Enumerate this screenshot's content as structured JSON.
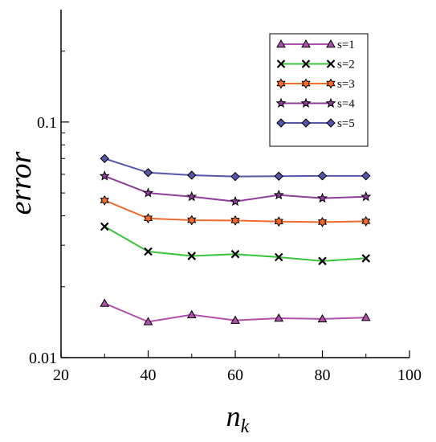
{
  "chart_data": {
    "type": "line",
    "xlabel": "n",
    "xlabel_sub": "k",
    "ylabel": "error",
    "xlim": [
      20,
      100
    ],
    "ylim": [
      0.01,
      0.3
    ],
    "yscale": "log",
    "grid": false,
    "legend_position": "top-right",
    "x_ticks": [
      "20",
      "40",
      "60",
      "80",
      "100"
    ],
    "y_ticks": [
      "0.01",
      "0.1"
    ],
    "x": [
      30,
      40,
      50,
      60,
      70,
      80,
      90
    ],
    "series": [
      {
        "name": "s=1",
        "color": "#b14fad",
        "marker": "triangle",
        "values": [
          0.017,
          0.0142,
          0.0152,
          0.0144,
          0.0147,
          0.0146,
          0.0148
        ]
      },
      {
        "name": "s=2",
        "color": "#3cc33c",
        "marker": "x",
        "values": [
          0.036,
          0.0282,
          0.027,
          0.0275,
          0.0267,
          0.0257,
          0.0264
        ]
      },
      {
        "name": "s=3",
        "color": "#f26b2a",
        "marker": "star6",
        "values": [
          0.0465,
          0.039,
          0.0383,
          0.0382,
          0.0378,
          0.0376,
          0.0379
        ]
      },
      {
        "name": "s=4",
        "color": "#8e3d9a",
        "marker": "star5",
        "values": [
          0.059,
          0.05,
          0.0482,
          0.046,
          0.049,
          0.0475,
          0.0482
        ]
      },
      {
        "name": "s=5",
        "color": "#5555aa",
        "marker": "diamond",
        "values": [
          0.07,
          0.061,
          0.0595,
          0.0587,
          0.0589,
          0.0591,
          0.0591
        ]
      }
    ]
  }
}
